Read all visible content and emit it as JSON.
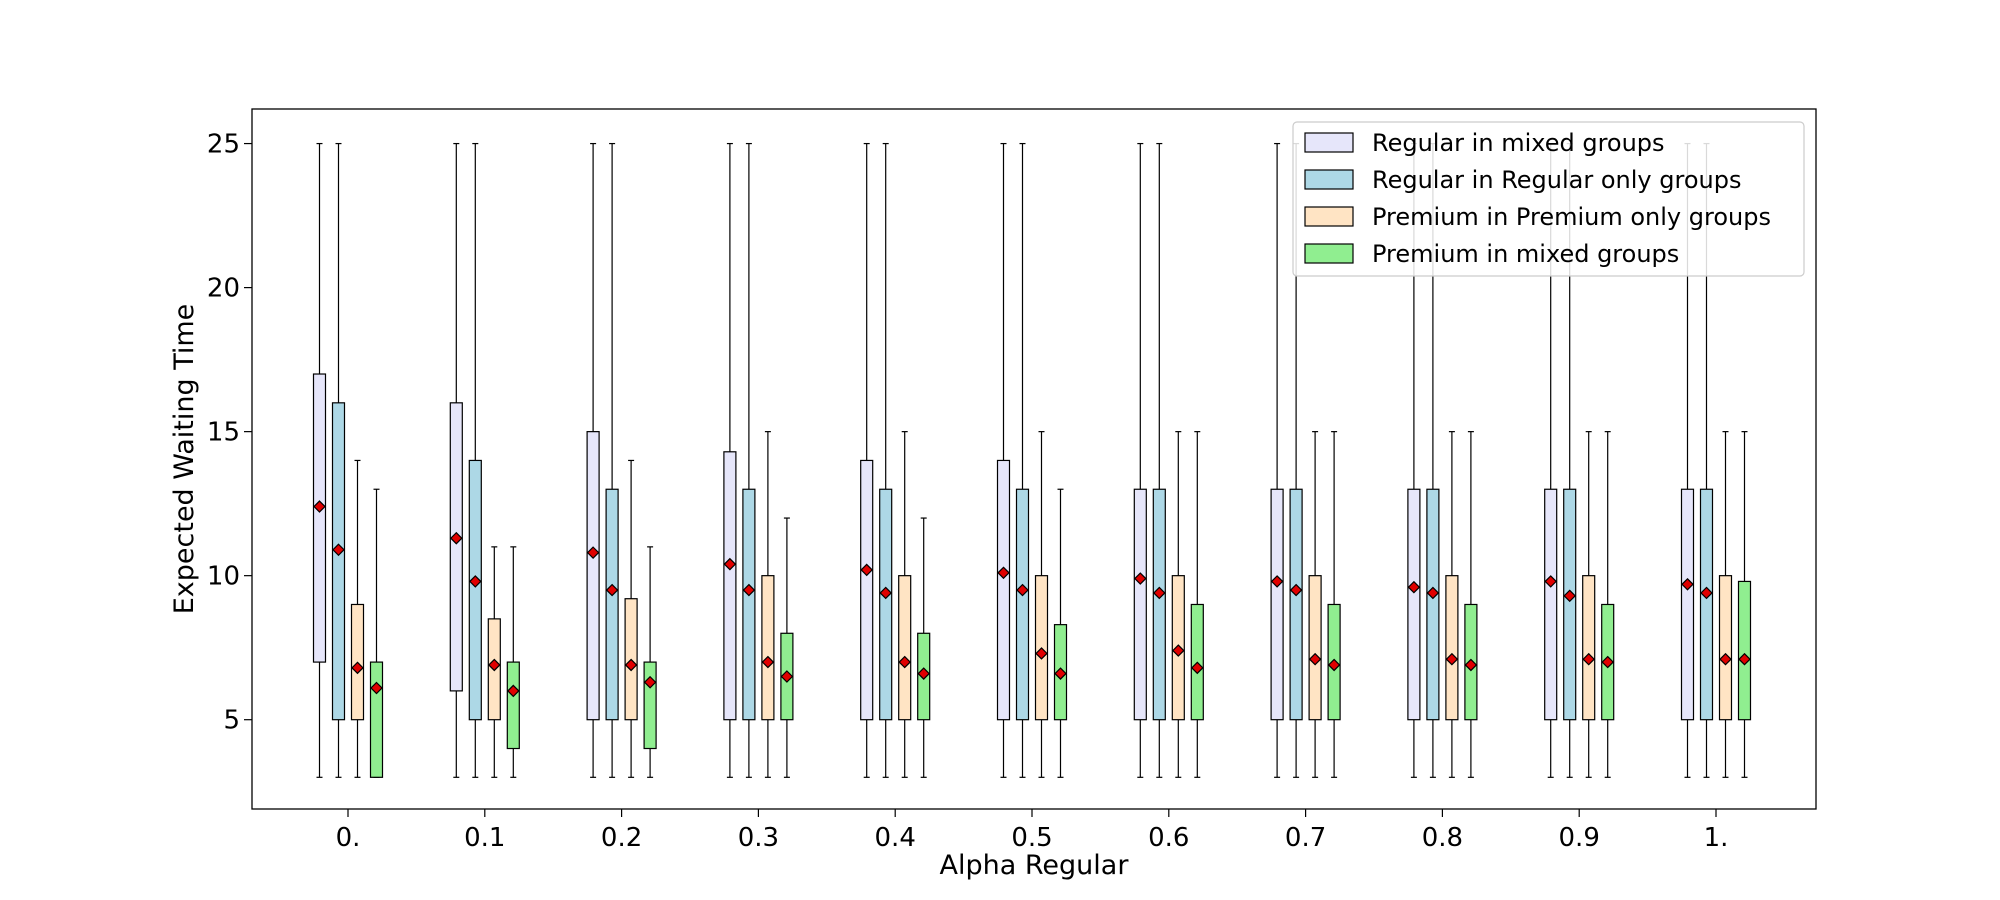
{
  "chart_data": {
    "type": "box",
    "title": "",
    "xlabel": "Alpha Regular",
    "ylabel": "Expected Waiting Time",
    "categories": [
      "0.",
      "0.1",
      "0.2",
      "0.3",
      "0.4",
      "0.5",
      "0.6",
      "0.7",
      "0.8",
      "0.9",
      "1."
    ],
    "yticks": [
      5,
      10,
      15,
      20,
      25
    ],
    "ylim": [
      1.9,
      26.2
    ],
    "grid": false,
    "legend_position": "top-right",
    "mean_marker_color": "#e00000",
    "series": [
      {
        "name": "Regular in mixed groups",
        "color": "#e6e6fa",
        "boxes": [
          {
            "whislo": 3,
            "q1": 7,
            "q3": 17,
            "whishi": 25,
            "mean": 12.4
          },
          {
            "whislo": 3,
            "q1": 6,
            "q3": 16,
            "whishi": 25,
            "mean": 11.3
          },
          {
            "whislo": 3,
            "q1": 5,
            "q3": 15,
            "whishi": 25,
            "mean": 10.8
          },
          {
            "whislo": 3,
            "q1": 5,
            "q3": 14.3,
            "whishi": 25,
            "mean": 10.4
          },
          {
            "whislo": 3,
            "q1": 5,
            "q3": 14,
            "whishi": 25,
            "mean": 10.2
          },
          {
            "whislo": 3,
            "q1": 5,
            "q3": 14,
            "whishi": 25,
            "mean": 10.1
          },
          {
            "whislo": 3,
            "q1": 5,
            "q3": 13,
            "whishi": 25,
            "mean": 9.9
          },
          {
            "whislo": 3,
            "q1": 5,
            "q3": 13,
            "whishi": 25,
            "mean": 9.8
          },
          {
            "whislo": 3,
            "q1": 5,
            "q3": 13,
            "whishi": 25,
            "mean": 9.6
          },
          {
            "whislo": 3,
            "q1": 5,
            "q3": 13,
            "whishi": 25,
            "mean": 9.8
          },
          {
            "whislo": 3,
            "q1": 5,
            "q3": 13,
            "whishi": 25,
            "mean": 9.7
          }
        ]
      },
      {
        "name": "Regular in Regular only groups",
        "color": "#add8e6",
        "boxes": [
          {
            "whislo": 3,
            "q1": 5,
            "q3": 16,
            "whishi": 25,
            "mean": 10.9
          },
          {
            "whislo": 3,
            "q1": 5,
            "q3": 14,
            "whishi": 25,
            "mean": 9.8
          },
          {
            "whislo": 3,
            "q1": 5,
            "q3": 13,
            "whishi": 25,
            "mean": 9.5
          },
          {
            "whislo": 3,
            "q1": 5,
            "q3": 13,
            "whishi": 25,
            "mean": 9.5
          },
          {
            "whislo": 3,
            "q1": 5,
            "q3": 13,
            "whishi": 25,
            "mean": 9.4
          },
          {
            "whislo": 3,
            "q1": 5,
            "q3": 13,
            "whishi": 25,
            "mean": 9.5
          },
          {
            "whislo": 3,
            "q1": 5,
            "q3": 13,
            "whishi": 25,
            "mean": 9.4
          },
          {
            "whislo": 3,
            "q1": 5,
            "q3": 13,
            "whishi": 25,
            "mean": 9.5
          },
          {
            "whislo": 3,
            "q1": 5,
            "q3": 13,
            "whishi": 25,
            "mean": 9.4
          },
          {
            "whislo": 3,
            "q1": 5,
            "q3": 13,
            "whishi": 25,
            "mean": 9.3
          },
          {
            "whislo": 3,
            "q1": 5,
            "q3": 13,
            "whishi": 25,
            "mean": 9.4
          }
        ]
      },
      {
        "name": "Premium in Premium only groups",
        "color": "#ffe4c4",
        "boxes": [
          {
            "whislo": 3,
            "q1": 5,
            "q3": 9,
            "whishi": 14,
            "mean": 6.8
          },
          {
            "whislo": 3,
            "q1": 5,
            "q3": 8.5,
            "whishi": 11,
            "mean": 6.9
          },
          {
            "whislo": 3,
            "q1": 5,
            "q3": 9.2,
            "whishi": 14,
            "mean": 6.9
          },
          {
            "whislo": 3,
            "q1": 5,
            "q3": 10,
            "whishi": 15,
            "mean": 7.0
          },
          {
            "whislo": 3,
            "q1": 5,
            "q3": 10,
            "whishi": 15,
            "mean": 7.0
          },
          {
            "whislo": 3,
            "q1": 5,
            "q3": 10,
            "whishi": 15,
            "mean": 7.3
          },
          {
            "whislo": 3,
            "q1": 5,
            "q3": 10,
            "whishi": 15,
            "mean": 7.4
          },
          {
            "whislo": 3,
            "q1": 5,
            "q3": 10,
            "whishi": 15,
            "mean": 7.1
          },
          {
            "whislo": 3,
            "q1": 5,
            "q3": 10,
            "whishi": 15,
            "mean": 7.1
          },
          {
            "whislo": 3,
            "q1": 5,
            "q3": 10,
            "whishi": 15,
            "mean": 7.1
          },
          {
            "whislo": 3,
            "q1": 5,
            "q3": 10,
            "whishi": 15,
            "mean": 7.1
          }
        ]
      },
      {
        "name": "Premium in mixed groups",
        "color": "#90ee90",
        "boxes": [
          {
            "whislo": 3,
            "q1": 3,
            "q3": 7,
            "whishi": 13,
            "mean": 6.1
          },
          {
            "whislo": 3,
            "q1": 4,
            "q3": 7,
            "whishi": 11,
            "mean": 6.0
          },
          {
            "whislo": 3,
            "q1": 4,
            "q3": 7,
            "whishi": 11,
            "mean": 6.3
          },
          {
            "whislo": 3,
            "q1": 5,
            "q3": 8,
            "whishi": 12,
            "mean": 6.5
          },
          {
            "whislo": 3,
            "q1": 5,
            "q3": 8,
            "whishi": 12,
            "mean": 6.6
          },
          {
            "whislo": 3,
            "q1": 5,
            "q3": 8.3,
            "whishi": 13,
            "mean": 6.6
          },
          {
            "whislo": 3,
            "q1": 5,
            "q3": 9,
            "whishi": 15,
            "mean": 6.8
          },
          {
            "whislo": 3,
            "q1": 5,
            "q3": 9,
            "whishi": 15,
            "mean": 6.9
          },
          {
            "whislo": 3,
            "q1": 5,
            "q3": 9,
            "whishi": 15,
            "mean": 6.9
          },
          {
            "whislo": 3,
            "q1": 5,
            "q3": 9,
            "whishi": 15,
            "mean": 7.0
          },
          {
            "whislo": 3,
            "q1": 5,
            "q3": 9.8,
            "whishi": 15,
            "mean": 7.1
          }
        ]
      }
    ]
  }
}
